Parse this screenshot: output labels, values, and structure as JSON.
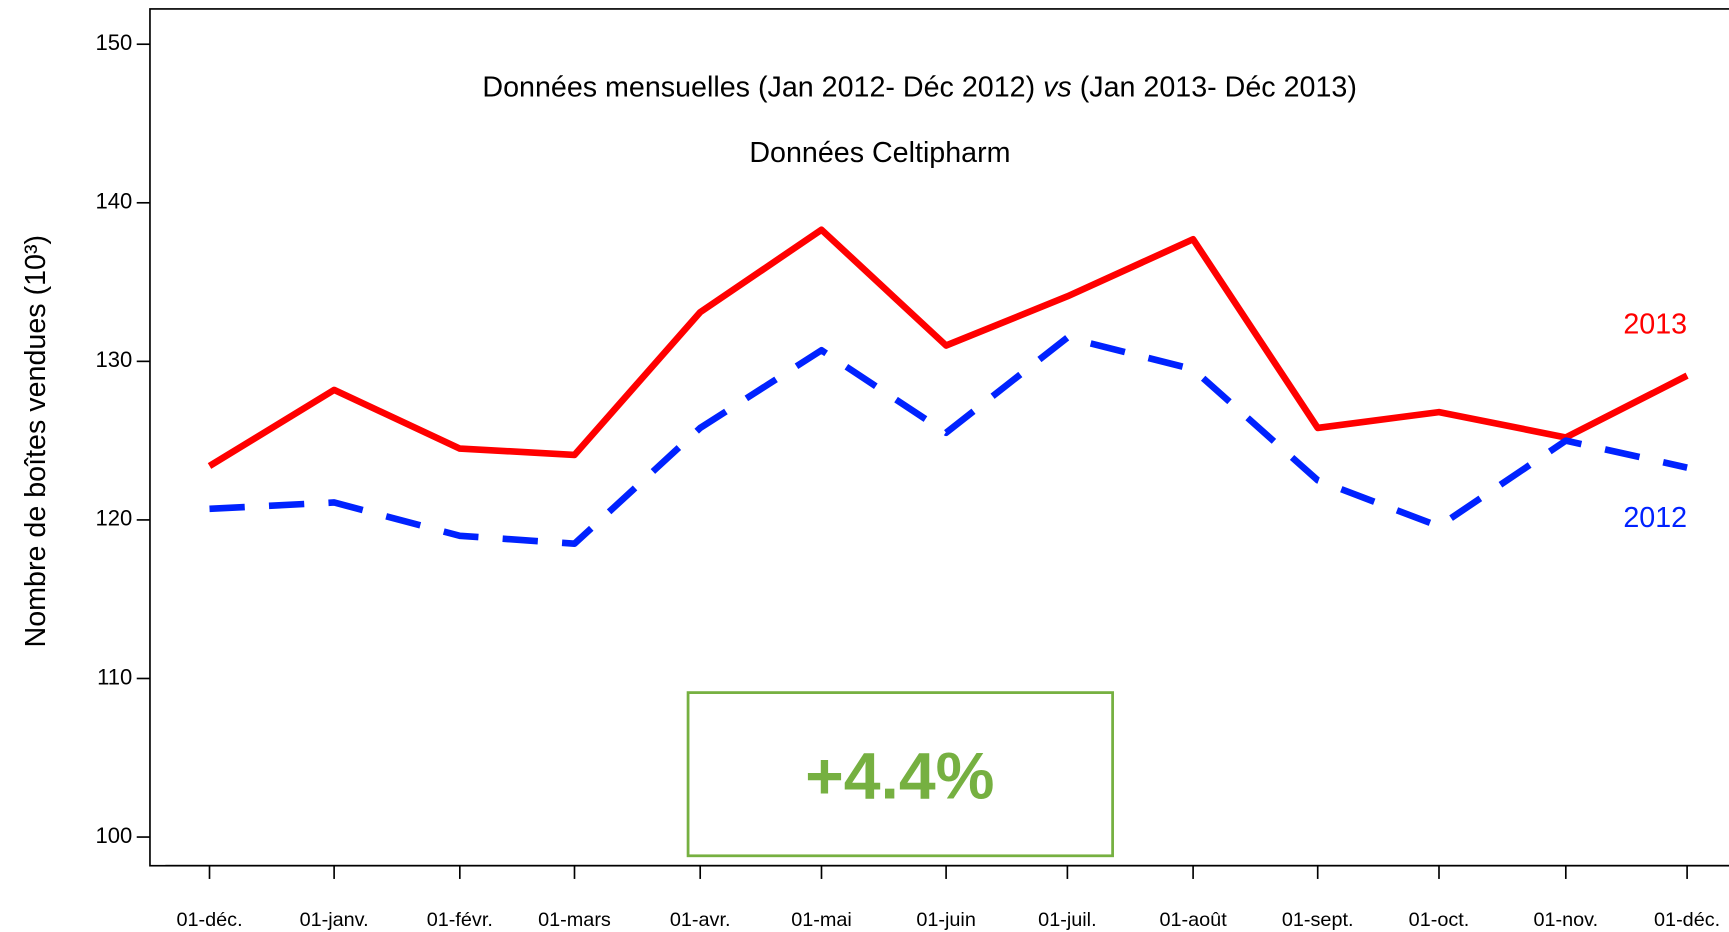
{
  "chart_data": {
    "type": "line",
    "title": [
      "Données mensuelles (Jan 2012- Déc 2012) ",
      "vs",
      " (Jan 2013- Déc 2013)"
    ],
    "subtitle": "Données Celtipharm",
    "y_label": "Nombre de boîtes vendues (10³)",
    "annotation": "+4.4%",
    "categories": [
      "01-déc.",
      "01-janv.",
      "01-févr.",
      "01-mars",
      "01-avr.",
      "01-mai",
      "01-juin",
      "01-juil.",
      "01-août",
      "01-sept.",
      "01-oct.",
      "01-nov.",
      "01-déc."
    ],
    "series": [
      {
        "name": "2013",
        "color": "#ff0000",
        "dashed": false,
        "values": [
          123.4,
          128.2,
          124.5,
          124.1,
          133.1,
          138.3,
          131.0,
          134.1,
          137.7,
          125.8,
          126.8,
          125.2,
          129.1
        ]
      },
      {
        "name": "2012",
        "color": "#0022ff",
        "dashed": true,
        "values": [
          120.7,
          121.1,
          119.0,
          118.5,
          125.8,
          130.7,
          125.5,
          131.5,
          129.5,
          122.5,
          119.6,
          125.0,
          123.3
        ]
      }
    ],
    "ylim": [
      100,
      150
    ],
    "yticks": [
      100,
      110,
      120,
      130,
      140,
      150
    ]
  }
}
